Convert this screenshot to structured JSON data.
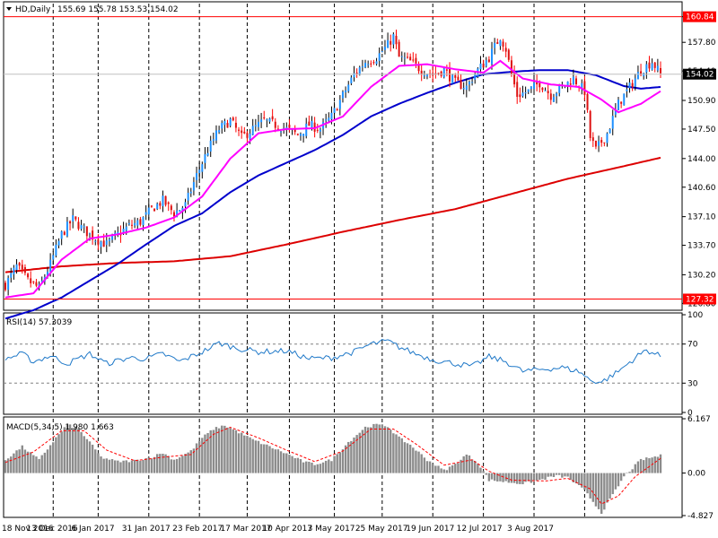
{
  "header": {
    "symbol": "HD,Daily",
    "ohlc": "155.69 155.78 153.53 154.02"
  },
  "colors": {
    "bull": "#000000",
    "bear": "#ff0000",
    "bull_body": "#1e90ff",
    "bear_body": "#dd1111",
    "ma_fast": "#ff00ff",
    "ma_mid": "#0000cc",
    "ma_slow": "#dd0000",
    "rsi": "#1e78c8",
    "macd_hist": "#8c8c8c",
    "macd_signal": "#ff0000",
    "hline": "#ff0000",
    "grid": "#000000"
  },
  "chart_data": [
    {
      "type": "candlestick",
      "panel": "price",
      "title": "HD,Daily",
      "ylim": [
        126.2,
        162.4
      ],
      "price_ticks": [
        "160.84",
        "157.80",
        "154.40",
        "150.90",
        "147.50",
        "144.00",
        "140.60",
        "137.10",
        "133.70",
        "130.20",
        "126.80"
      ],
      "level_high": "160.84",
      "level_low": "127.32",
      "last_price": "154.02",
      "grid": "vertical dashed",
      "x_labels": [
        "18 Nov 2016",
        "13 Dec 2016",
        "6 Jan 2017",
        "31 Jan 2017",
        "23 Feb 2017",
        "17 Mar 2017",
        "10 Apr 2017",
        "3 May 2017",
        "25 May 2017",
        "19 Jun 2017",
        "12 Jul 2017",
        "3 Aug 2017"
      ],
      "close_keypoints": [
        [
          0,
          129.0
        ],
        [
          4,
          131.2
        ],
        [
          8,
          129.5
        ],
        [
          12,
          128.6
        ],
        [
          16,
          131.5
        ],
        [
          20,
          135.0
        ],
        [
          24,
          136.8
        ],
        [
          28,
          135.5
        ],
        [
          32,
          134.5
        ],
        [
          36,
          133.8
        ],
        [
          40,
          135.0
        ],
        [
          44,
          136.0
        ],
        [
          48,
          136.5
        ],
        [
          52,
          138.0
        ],
        [
          56,
          139.0
        ],
        [
          60,
          137.5
        ],
        [
          64,
          138.5
        ],
        [
          68,
          142.0
        ],
        [
          72,
          145.0
        ],
        [
          76,
          147.5
        ],
        [
          80,
          148.5
        ],
        [
          84,
          146.5
        ],
        [
          88,
          147.5
        ],
        [
          92,
          148.5
        ],
        [
          96,
          148.0
        ],
        [
          100,
          147.5
        ],
        [
          104,
          146.8
        ],
        [
          108,
          148.0
        ],
        [
          112,
          147.5
        ],
        [
          116,
          149.0
        ],
        [
          120,
          151.5
        ],
        [
          124,
          154.0
        ],
        [
          128,
          155.5
        ],
        [
          132,
          156.0
        ],
        [
          136,
          157.5
        ],
        [
          138,
          158.5
        ],
        [
          140,
          156.0
        ],
        [
          144,
          155.5
        ],
        [
          148,
          154.5
        ],
        [
          152,
          154.0
        ],
        [
          156,
          154.5
        ],
        [
          160,
          153.0
        ],
        [
          164,
          152.5
        ],
        [
          168,
          154.5
        ],
        [
          172,
          156.0
        ],
        [
          176,
          158.5
        ],
        [
          178,
          157.0
        ],
        [
          180,
          154.0
        ],
        [
          182,
          151.5
        ],
        [
          186,
          152.0
        ],
        [
          190,
          153.0
        ],
        [
          194,
          151.5
        ],
        [
          198,
          152.5
        ],
        [
          202,
          153.5
        ],
        [
          206,
          152.0
        ],
        [
          208,
          146.5
        ],
        [
          210,
          145.0
        ],
        [
          214,
          147.0
        ],
        [
          218,
          150.5
        ],
        [
          222,
          152.5
        ],
        [
          226,
          154.5
        ],
        [
          230,
          155.5
        ],
        [
          233,
          154.0
        ]
      ],
      "ma_fast_keypoints": [
        [
          0,
          127.5
        ],
        [
          10,
          128.0
        ],
        [
          20,
          132.0
        ],
        [
          30,
          134.5
        ],
        [
          40,
          135.0
        ],
        [
          50,
          135.8
        ],
        [
          60,
          137.0
        ],
        [
          70,
          139.5
        ],
        [
          80,
          144.0
        ],
        [
          90,
          147.0
        ],
        [
          100,
          147.5
        ],
        [
          110,
          147.6
        ],
        [
          120,
          149.0
        ],
        [
          130,
          152.5
        ],
        [
          140,
          155.0
        ],
        [
          150,
          155.2
        ],
        [
          160,
          154.6
        ],
        [
          170,
          154.2
        ],
        [
          176,
          155.6
        ],
        [
          184,
          153.5
        ],
        [
          194,
          152.8
        ],
        [
          204,
          152.5
        ],
        [
          212,
          151.0
        ],
        [
          218,
          149.5
        ],
        [
          226,
          150.5
        ],
        [
          233,
          152.0
        ]
      ],
      "ma_mid_keypoints": [
        [
          0,
          125.0
        ],
        [
          10,
          126.0
        ],
        [
          20,
          127.5
        ],
        [
          30,
          129.5
        ],
        [
          40,
          131.5
        ],
        [
          50,
          133.8
        ],
        [
          60,
          136.0
        ],
        [
          70,
          137.5
        ],
        [
          80,
          140.0
        ],
        [
          90,
          142.0
        ],
        [
          100,
          143.5
        ],
        [
          110,
          145.0
        ],
        [
          120,
          146.8
        ],
        [
          130,
          149.0
        ],
        [
          140,
          150.5
        ],
        [
          150,
          151.8
        ],
        [
          160,
          153.0
        ],
        [
          170,
          154.0
        ],
        [
          180,
          154.3
        ],
        [
          190,
          154.5
        ],
        [
          200,
          154.5
        ],
        [
          210,
          153.9
        ],
        [
          220,
          152.6
        ],
        [
          226,
          152.3
        ],
        [
          233,
          152.5
        ]
      ],
      "ma_slow_keypoints": [
        [
          0,
          130.5
        ],
        [
          20,
          131.2
        ],
        [
          40,
          131.6
        ],
        [
          60,
          131.8
        ],
        [
          80,
          132.4
        ],
        [
          100,
          133.8
        ],
        [
          120,
          135.3
        ],
        [
          140,
          136.7
        ],
        [
          160,
          138.0
        ],
        [
          180,
          139.8
        ],
        [
          200,
          141.6
        ],
        [
          220,
          143.1
        ],
        [
          233,
          144.1
        ]
      ],
      "n_bars": 234
    },
    {
      "type": "line",
      "panel": "rsi",
      "title": "RSI(14) 57.3039",
      "ylim": [
        0,
        100
      ],
      "ticks": [
        "100",
        "70",
        "30",
        "0"
      ],
      "levels": [
        70,
        30
      ],
      "keypoints": [
        [
          0,
          55
        ],
        [
          6,
          60
        ],
        [
          10,
          52
        ],
        [
          16,
          58
        ],
        [
          22,
          50
        ],
        [
          30,
          60
        ],
        [
          36,
          50
        ],
        [
          44,
          56
        ],
        [
          50,
          55
        ],
        [
          56,
          60
        ],
        [
          62,
          52
        ],
        [
          70,
          62
        ],
        [
          76,
          71
        ],
        [
          82,
          66
        ],
        [
          90,
          62
        ],
        [
          100,
          63
        ],
        [
          108,
          55
        ],
        [
          116,
          56
        ],
        [
          124,
          62
        ],
        [
          130,
          70
        ],
        [
          136,
          73
        ],
        [
          140,
          67
        ],
        [
          146,
          60
        ],
        [
          152,
          54
        ],
        [
          160,
          50
        ],
        [
          166,
          47
        ],
        [
          172,
          57
        ],
        [
          178,
          52
        ],
        [
          184,
          42
        ],
        [
          190,
          44
        ],
        [
          198,
          46
        ],
        [
          204,
          42
        ],
        [
          208,
          33
        ],
        [
          212,
          31
        ],
        [
          218,
          42
        ],
        [
          224,
          56
        ],
        [
          228,
          64
        ],
        [
          233,
          57.3
        ]
      ]
    },
    {
      "type": "bar",
      "panel": "macd",
      "title": "MACD(5,34,5) 1.980 1.663",
      "ylim": [
        -4.827,
        6.167
      ],
      "ticks": [
        "6.167",
        "0.00",
        "-4.827"
      ],
      "hist_keypoints": [
        [
          0,
          1.5
        ],
        [
          6,
          3.0
        ],
        [
          12,
          1.5
        ],
        [
          18,
          4.0
        ],
        [
          22,
          5.5
        ],
        [
          26,
          5.0
        ],
        [
          30,
          3.5
        ],
        [
          34,
          1.8
        ],
        [
          40,
          1.3
        ],
        [
          46,
          1.4
        ],
        [
          52,
          1.8
        ],
        [
          56,
          2.3
        ],
        [
          60,
          1.5
        ],
        [
          66,
          2.5
        ],
        [
          70,
          4.0
        ],
        [
          74,
          5.0
        ],
        [
          78,
          5.4
        ],
        [
          82,
          4.8
        ],
        [
          88,
          3.8
        ],
        [
          94,
          3.0
        ],
        [
          100,
          2.2
        ],
        [
          106,
          1.3
        ],
        [
          110,
          1.0
        ],
        [
          116,
          1.5
        ],
        [
          122,
          3.5
        ],
        [
          128,
          5.2
        ],
        [
          132,
          5.5
        ],
        [
          136,
          5.3
        ],
        [
          140,
          4.0
        ],
        [
          144,
          3.2
        ],
        [
          150,
          1.5
        ],
        [
          156,
          0.3
        ],
        [
          160,
          1.0
        ],
        [
          164,
          2.1
        ],
        [
          168,
          1.2
        ],
        [
          172,
          -0.8
        ],
        [
          178,
          -1.0
        ],
        [
          184,
          -1.2
        ],
        [
          190,
          -0.8
        ],
        [
          196,
          -0.3
        ],
        [
          200,
          -0.5
        ],
        [
          206,
          -2.0
        ],
        [
          212,
          -4.5
        ],
        [
          216,
          -2.5
        ],
        [
          220,
          -0.4
        ],
        [
          226,
          1.5
        ],
        [
          233,
          1.98
        ]
      ],
      "signal_keypoints": [
        [
          0,
          1.2
        ],
        [
          10,
          2.4
        ],
        [
          20,
          4.8
        ],
        [
          28,
          4.8
        ],
        [
          36,
          2.6
        ],
        [
          46,
          1.4
        ],
        [
          56,
          1.8
        ],
        [
          66,
          2.1
        ],
        [
          74,
          4.4
        ],
        [
          80,
          5.2
        ],
        [
          90,
          4.0
        ],
        [
          100,
          2.6
        ],
        [
          110,
          1.3
        ],
        [
          120,
          2.5
        ],
        [
          130,
          5.0
        ],
        [
          138,
          5.0
        ],
        [
          146,
          3.3
        ],
        [
          156,
          0.9
        ],
        [
          166,
          1.5
        ],
        [
          172,
          0.2
        ],
        [
          180,
          -0.8
        ],
        [
          192,
          -0.9
        ],
        [
          200,
          -0.6
        ],
        [
          208,
          -1.8
        ],
        [
          212,
          -3.5
        ],
        [
          218,
          -2.6
        ],
        [
          224,
          -0.4
        ],
        [
          233,
          1.663
        ]
      ]
    }
  ]
}
